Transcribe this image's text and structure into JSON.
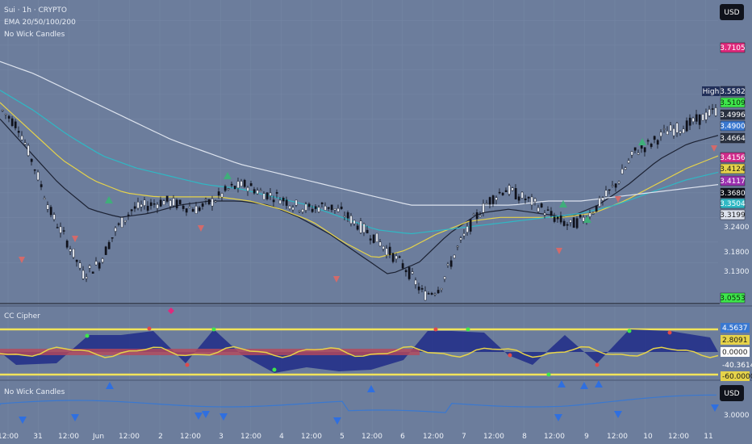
{
  "header": {
    "title": "Sui · 1h · CRYPTO",
    "ema_label": "EMA 20/50/100/200",
    "nwc_label": "No Wick Candles"
  },
  "currency": "USD",
  "colors": {
    "background": "#6c7d9c",
    "ema20": "#1c2233",
    "ema50": "#e6d34a",
    "ema100": "#2fb8c4",
    "ema200": "#dde3ee",
    "up_arrow": "#3fae7a",
    "down_arrow": "#d36a6a"
  },
  "price_tags": [
    {
      "label": "3.7105",
      "price": 3.7105,
      "bg": "#e0297c",
      "fg": "#ffffff"
    },
    {
      "label": "3.5582",
      "price": 3.5582,
      "bg": "#22305a",
      "fg": "#ffffff",
      "prefix": "High"
    },
    {
      "label": "3.5109",
      "price": 3.5109,
      "bg": "#3ee64b",
      "fg": "#0a2a0a"
    },
    {
      "label": "3.4996",
      "price": 3.4996,
      "bg": "#2a3140",
      "fg": "#ffffff"
    },
    {
      "label": "3.4900",
      "price": 3.49,
      "bg": "#3a78d0",
      "fg": "#ffffff"
    },
    {
      "label": "3.4664",
      "price": 3.4664,
      "bg": "#2a3140",
      "fg": "#ffffff"
    },
    {
      "label": "3.4156",
      "price": 3.4156,
      "bg": "#d12c8c",
      "fg": "#ffffff"
    },
    {
      "label": "3.4124",
      "price": 3.4124,
      "bg": "#e6d34a",
      "fg": "#1a1a1a"
    },
    {
      "label": "3.4117",
      "price": 3.4117,
      "bg": "#9b2fb0",
      "fg": "#ffffff"
    },
    {
      "label": "3.3680",
      "price": 3.368,
      "bg": "#0d1018",
      "fg": "#ffffff"
    },
    {
      "label": "3.3504",
      "price": 3.3504,
      "bg": "#2fb8c4",
      "fg": "#ffffff"
    },
    {
      "label": "3.3199",
      "price": 3.3199,
      "bg": "#dde3ee",
      "fg": "#1a1a1a"
    },
    {
      "label": "3.0553",
      "price": 3.0553,
      "bg": "#3ee64b",
      "fg": "#0a2a0a"
    }
  ],
  "price_axis_ticks": [
    "3.2400",
    "3.1800",
    "3.1300"
  ],
  "cipher": {
    "label": "CC Cipher",
    "tags": [
      {
        "label": "4.5637",
        "bg": "#3a78d0",
        "fg": "#ffffff"
      },
      {
        "label": "2.8091",
        "bg": "#e6d34a",
        "fg": "#1a1a1a"
      },
      {
        "label": "0.0000",
        "bg": "#ffffff",
        "fg": "#1a1a1a"
      },
      {
        "label": "-40.3614",
        "bg": "#6c7d9c",
        "fg": "#ffffff"
      },
      {
        "label": "-60.0000",
        "bg": "#e6d34a",
        "fg": "#1a1a1a"
      }
    ]
  },
  "nwc": {
    "label": "No Wick Candles",
    "currency": "USD",
    "tick": "3.0000"
  },
  "time_axis": [
    "12:00",
    "31",
    "12:00",
    "Jun",
    "12:00",
    "2",
    "12:00",
    "3",
    "12:00",
    "4",
    "12:00",
    "5",
    "12:00",
    "6",
    "12:00",
    "7",
    "12:00",
    "8",
    "12:00",
    "9",
    "12:00",
    "10",
    "12:00",
    "11"
  ],
  "chart_data": {
    "type": "candlestick",
    "title": "Sui · 1h · CRYPTO",
    "xlabel": "",
    "ylabel": "USD",
    "ylim": [
      3.03,
      3.77
    ],
    "series": [
      {
        "name": "No Wick Candles",
        "close_path": [
          3.5,
          3.46,
          3.36,
          3.25,
          3.18,
          3.1,
          3.13,
          3.21,
          3.26,
          3.27,
          3.28,
          3.27,
          3.26,
          3.28,
          3.31,
          3.32,
          3.3,
          3.29,
          3.27,
          3.26,
          3.27,
          3.25,
          3.22,
          3.19,
          3.15,
          3.11,
          3.05,
          3.07,
          3.16,
          3.23,
          3.28,
          3.31,
          3.29,
          3.27,
          3.24,
          3.22,
          3.24,
          3.28,
          3.33,
          3.4,
          3.42,
          3.45,
          3.46,
          3.48,
          3.5
        ]
      },
      {
        "name": "EMA 20",
        "values": [
          3.48,
          3.4,
          3.32,
          3.26,
          3.24,
          3.25,
          3.27,
          3.28,
          3.28,
          3.27,
          3.24,
          3.2,
          3.15,
          3.1,
          3.13,
          3.2,
          3.25,
          3.26,
          3.25,
          3.24,
          3.27,
          3.32,
          3.38,
          3.42,
          3.44
        ]
      },
      {
        "name": "EMA 50",
        "values": [
          3.52,
          3.45,
          3.38,
          3.33,
          3.3,
          3.29,
          3.29,
          3.29,
          3.28,
          3.26,
          3.23,
          3.18,
          3.14,
          3.16,
          3.2,
          3.23,
          3.24,
          3.24,
          3.24,
          3.25,
          3.28,
          3.32,
          3.36,
          3.39
        ]
      },
      {
        "name": "EMA 100",
        "values": [
          3.55,
          3.5,
          3.44,
          3.39,
          3.36,
          3.34,
          3.32,
          3.31,
          3.29,
          3.27,
          3.24,
          3.21,
          3.2,
          3.21,
          3.22,
          3.23,
          3.24,
          3.25,
          3.27,
          3.3,
          3.33,
          3.35
        ]
      },
      {
        "name": "EMA 200",
        "values": [
          3.62,
          3.59,
          3.55,
          3.51,
          3.47,
          3.43,
          3.4,
          3.37,
          3.35,
          3.33,
          3.31,
          3.29,
          3.27,
          3.27,
          3.27,
          3.27,
          3.28,
          3.28,
          3.29,
          3.3,
          3.31,
          3.32
        ]
      }
    ]
  }
}
